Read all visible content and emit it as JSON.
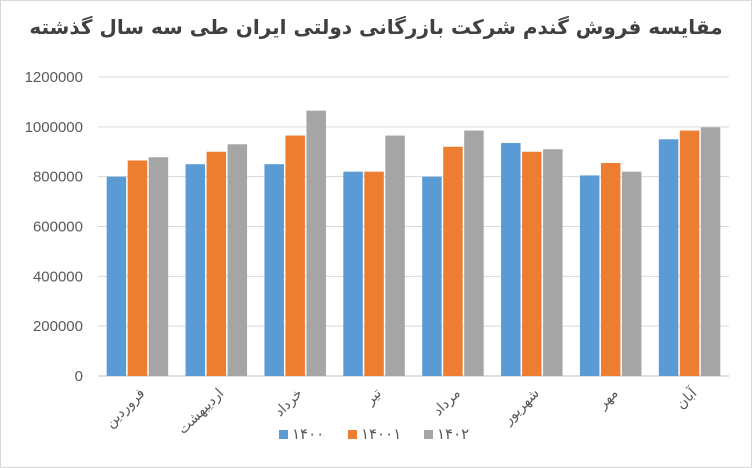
{
  "chart_data": {
    "type": "bar",
    "title": "مقایسه فروش گندم شرکت بازرگانی دولتی ایران طی سه سال گذشته",
    "xlabel": "",
    "ylabel": "",
    "ylim": [
      0,
      1200000
    ],
    "yticks": [
      "0",
      "200000",
      "400000",
      "600000",
      "800000",
      "1000000",
      "1200000"
    ],
    "grid": true,
    "legend_position": "bottom",
    "categories": [
      "فروردین",
      "اردیبهشت",
      "خرداد",
      "تیر",
      "مرداد",
      "شهریور",
      "مهر",
      "آبان"
    ],
    "series": [
      {
        "name": "۱۴۰۰",
        "color": "#5b9bd5",
        "values": [
          800000,
          850000,
          850000,
          820000,
          800000,
          935000,
          805000,
          950000
        ]
      },
      {
        "name": "۱۴۰۰۱",
        "color": "#ed7d31",
        "values": [
          865000,
          900000,
          965000,
          820000,
          920000,
          900000,
          855000,
          985000
        ]
      },
      {
        "name": "۱۴۰۲",
        "color": "#a5a5a5",
        "values": [
          878000,
          930000,
          1065000,
          965000,
          985000,
          910000,
          820000,
          998000
        ]
      }
    ]
  }
}
